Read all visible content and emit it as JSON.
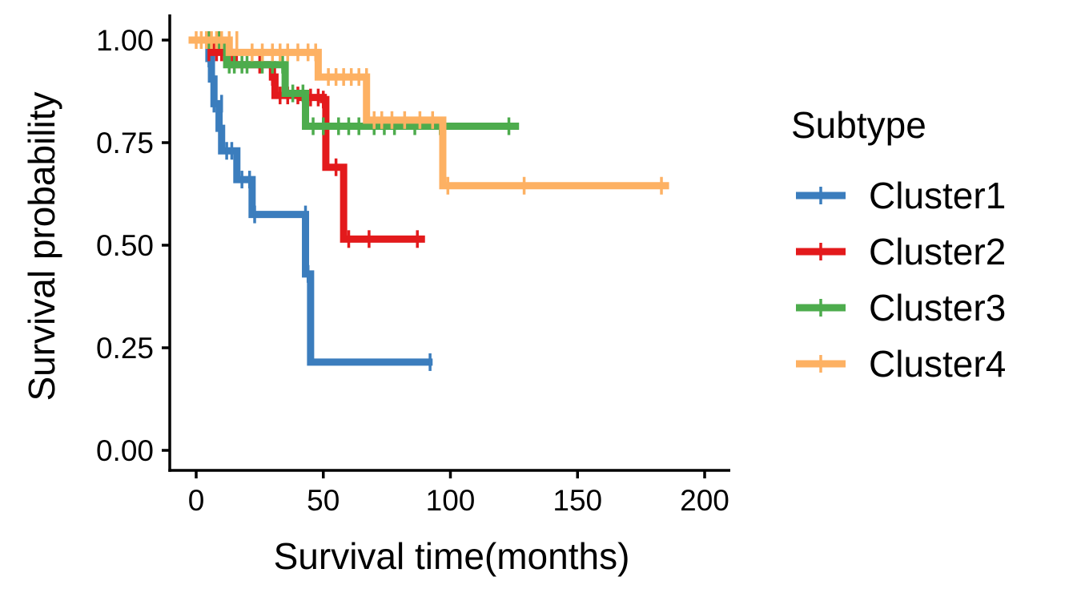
{
  "chart_data": {
    "type": "line",
    "xlabel": "Survival time(months)",
    "ylabel": "Survival probability",
    "xlim": [
      -5,
      210
    ],
    "ylim": [
      -0.05,
      1.04
    ],
    "x_ticks": [
      0,
      50,
      100,
      150,
      200
    ],
    "x_tick_labels": [
      "0",
      "50",
      "100",
      "150",
      "200"
    ],
    "y_ticks": [
      0,
      0.25,
      0.5,
      0.75,
      1.0
    ],
    "y_tick_labels": [
      "0.00",
      "0.25",
      "0.50",
      "0.75",
      "1.00"
    ],
    "grid": false,
    "legend": {
      "title": "Subtype",
      "placement": "right"
    },
    "series": [
      {
        "name": "Cluster1",
        "color": "#3b7dbd",
        "steps": [
          [
            0,
            1.0
          ],
          [
            5,
            0.955
          ],
          [
            6,
            0.905
          ],
          [
            7,
            0.845
          ],
          [
            9,
            0.785
          ],
          [
            10,
            0.73
          ],
          [
            16,
            0.66
          ],
          [
            22,
            0.575
          ],
          [
            43,
            0.43
          ],
          [
            45,
            0.215
          ],
          [
            93,
            0.215
          ]
        ],
        "censored": [
          [
            5,
            0.955
          ],
          [
            7,
            0.845
          ],
          [
            10,
            0.845
          ],
          [
            12,
            0.73
          ],
          [
            14,
            0.73
          ],
          [
            18,
            0.66
          ],
          [
            21,
            0.66
          ],
          [
            23,
            0.575
          ],
          [
            43,
            0.575
          ],
          [
            44,
            0.43
          ],
          [
            92,
            0.215
          ]
        ]
      },
      {
        "name": "Cluster2",
        "color": "#e31a1c",
        "steps": [
          [
            0,
            1.0
          ],
          [
            6,
            0.97
          ],
          [
            15,
            0.94
          ],
          [
            30,
            0.91
          ],
          [
            31,
            0.865
          ],
          [
            41,
            0.86
          ],
          [
            50,
            0.855
          ],
          [
            51,
            0.69
          ],
          [
            58,
            0.515
          ],
          [
            90,
            0.515
          ]
        ],
        "censored": [
          [
            5,
            0.97
          ],
          [
            8,
            0.97
          ],
          [
            10,
            0.97
          ],
          [
            25,
            0.94
          ],
          [
            30,
            0.91
          ],
          [
            33,
            0.865
          ],
          [
            36,
            0.865
          ],
          [
            40,
            0.865
          ],
          [
            45,
            0.86
          ],
          [
            48,
            0.86
          ],
          [
            50,
            0.855
          ],
          [
            55,
            0.69
          ],
          [
            60,
            0.515
          ],
          [
            68,
            0.515
          ],
          [
            87,
            0.515
          ]
        ]
      },
      {
        "name": "Cluster3",
        "color": "#4dac4d",
        "steps": [
          [
            0,
            1.0
          ],
          [
            12,
            0.94
          ],
          [
            35,
            0.87
          ],
          [
            43,
            0.79
          ],
          [
            127,
            0.79
          ]
        ],
        "censored": [
          [
            5,
            1.0
          ],
          [
            9,
            1.0
          ],
          [
            13,
            0.94
          ],
          [
            15,
            0.94
          ],
          [
            18,
            0.94
          ],
          [
            20,
            0.94
          ],
          [
            26,
            0.94
          ],
          [
            30,
            0.94
          ],
          [
            34,
            0.94
          ],
          [
            38,
            0.87
          ],
          [
            42,
            0.87
          ],
          [
            46,
            0.79
          ],
          [
            50,
            0.79
          ],
          [
            56,
            0.79
          ],
          [
            60,
            0.79
          ],
          [
            64,
            0.79
          ],
          [
            70,
            0.79
          ],
          [
            74,
            0.79
          ],
          [
            78,
            0.79
          ],
          [
            86,
            0.79
          ],
          [
            96,
            0.79
          ],
          [
            123,
            0.79
          ]
        ]
      },
      {
        "name": "Cluster4",
        "color": "#fdb163",
        "steps": [
          [
            -3,
            1.0
          ],
          [
            13,
            0.97
          ],
          [
            48,
            0.91
          ],
          [
            67,
            0.805
          ],
          [
            97,
            0.645
          ],
          [
            186,
            0.645
          ]
        ],
        "censored": [
          [
            0,
            1.0
          ],
          [
            2,
            1.0
          ],
          [
            4,
            1.0
          ],
          [
            6,
            1.0
          ],
          [
            8,
            1.0
          ],
          [
            10,
            1.0
          ],
          [
            13,
            1.0
          ],
          [
            16,
            1.0
          ],
          [
            22,
            0.97
          ],
          [
            26,
            0.97
          ],
          [
            30,
            0.97
          ],
          [
            33,
            0.97
          ],
          [
            36,
            0.97
          ],
          [
            40,
            0.97
          ],
          [
            44,
            0.97
          ],
          [
            47,
            0.97
          ],
          [
            52,
            0.91
          ],
          [
            55,
            0.91
          ],
          [
            58,
            0.91
          ],
          [
            61,
            0.91
          ],
          [
            64,
            0.91
          ],
          [
            67,
            0.91
          ],
          [
            70,
            0.805
          ],
          [
            73,
            0.805
          ],
          [
            77,
            0.805
          ],
          [
            82,
            0.805
          ],
          [
            88,
            0.805
          ],
          [
            93,
            0.805
          ],
          [
            99,
            0.645
          ],
          [
            129,
            0.645
          ],
          [
            183,
            0.645
          ]
        ]
      }
    ]
  }
}
